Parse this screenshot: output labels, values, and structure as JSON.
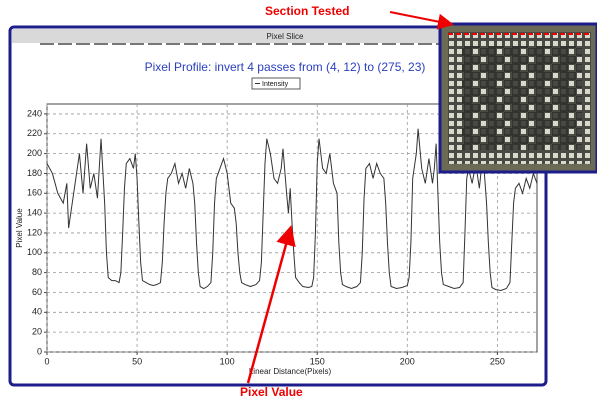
{
  "chart_data": {
    "type": "line",
    "title": "Pixel Slice",
    "subtitle": "Pixel Profile:  invert 4 passes   from (4, 12) to (275, 23)",
    "xlabel": "Linear Distance(Pixels)",
    "ylabel": "Pixel Value",
    "annotations": [
      "Section Tested",
      "Pixel Value"
    ],
    "x": [
      0,
      3,
      6,
      9,
      11,
      12,
      14,
      16,
      18,
      20,
      22,
      24,
      26,
      28,
      30,
      32,
      33,
      34,
      36,
      38,
      40,
      41,
      42,
      43,
      44,
      46,
      48,
      49,
      50,
      51,
      52,
      53,
      55,
      57,
      59,
      61,
      63,
      64,
      65,
      66,
      67,
      69,
      71,
      73,
      75,
      77,
      79,
      81,
      82,
      83,
      84,
      85,
      87,
      89,
      91,
      92,
      93,
      94,
      96,
      98,
      100,
      101,
      102,
      104,
      105,
      106,
      107,
      108,
      110,
      113,
      116,
      118,
      119,
      120,
      121,
      122,
      124,
      126,
      128,
      130,
      131,
      133,
      134,
      135,
      136,
      137,
      138,
      140,
      142,
      145,
      147,
      148,
      149,
      150,
      151,
      153,
      155,
      157,
      159,
      161,
      162,
      163,
      164,
      166,
      169,
      172,
      174,
      175,
      176,
      177,
      179,
      181,
      183,
      185,
      187,
      188,
      189,
      190,
      191,
      194,
      197,
      200,
      201,
      202,
      203,
      205,
      206,
      208,
      210,
      212,
      214,
      215,
      216,
      217,
      218,
      219,
      220,
      223,
      226,
      229,
      231,
      232,
      233,
      234,
      236,
      238,
      240,
      242,
      244,
      245,
      246,
      247,
      249,
      252,
      255,
      257,
      258,
      259,
      260,
      262,
      264,
      266,
      268,
      270,
      272
    ],
    "series": [
      {
        "name": "Intensity",
        "color": "#333333",
        "values": [
          190,
          180,
          160,
          150,
          170,
          125,
          150,
          175,
          200,
          160,
          210,
          165,
          180,
          155,
          215,
          150,
          100,
          75,
          72,
          72,
          70,
          80,
          120,
          165,
          190,
          195,
          185,
          200,
          175,
          130,
          90,
          72,
          70,
          68,
          67,
          68,
          70,
          90,
          130,
          160,
          175,
          180,
          190,
          170,
          180,
          165,
          185,
          170,
          150,
          110,
          80,
          66,
          64,
          66,
          70,
          100,
          150,
          175,
          185,
          195,
          180,
          165,
          150,
          145,
          130,
          100,
          80,
          70,
          68,
          66,
          68,
          72,
          90,
          140,
          190,
          215,
          200,
          175,
          170,
          185,
          205,
          160,
          140,
          165,
          130,
          100,
          75,
          70,
          66,
          65,
          66,
          75,
          120,
          190,
          215,
          185,
          180,
          200,
          170,
          160,
          110,
          80,
          68,
          66,
          64,
          66,
          70,
          100,
          155,
          185,
          190,
          175,
          190,
          180,
          175,
          150,
          110,
          80,
          66,
          64,
          65,
          67,
          75,
          110,
          175,
          200,
          225,
          185,
          170,
          195,
          170,
          185,
          210,
          160,
          110,
          80,
          68,
          66,
          64,
          65,
          70,
          120,
          175,
          185,
          170,
          190,
          165,
          200,
          150,
          110,
          80,
          65,
          63,
          62,
          64,
          70,
          110,
          150,
          165,
          170,
          160,
          175,
          165,
          180,
          170
        ]
      }
    ],
    "xlim": [
      0,
      272
    ],
    "ylim": [
      0,
      250
    ],
    "xticks": [
      0,
      50,
      100,
      150,
      200,
      250
    ],
    "yticks": [
      0,
      20,
      40,
      60,
      80,
      100,
      120,
      140,
      160,
      180,
      200,
      220,
      240
    ],
    "grid": true
  }
}
